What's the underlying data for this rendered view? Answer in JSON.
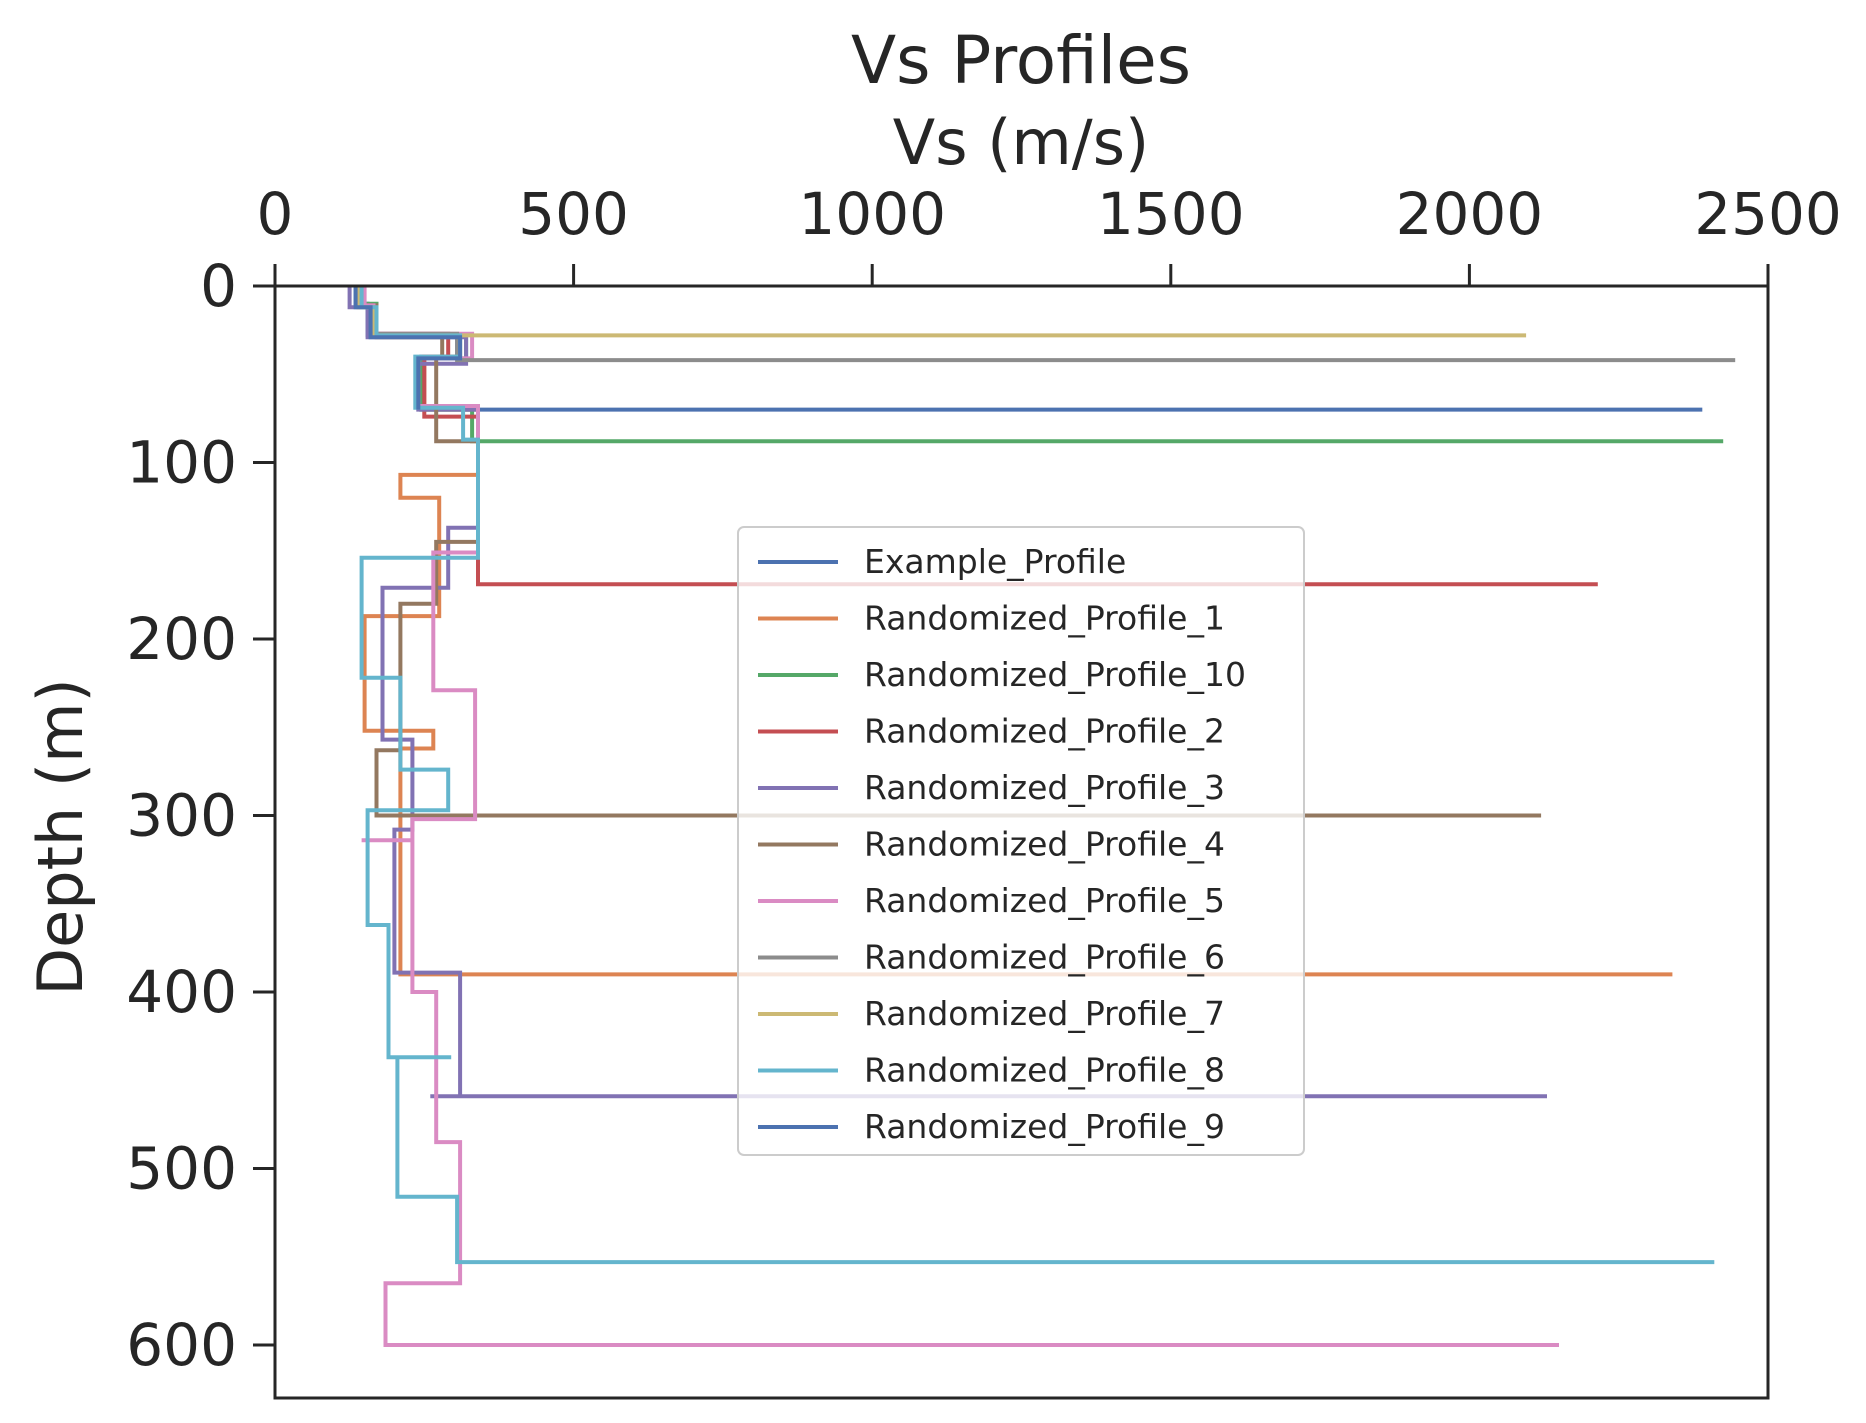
{
  "chart_data": {
    "type": "line",
    "title": "Vs Profiles",
    "xlabel": "Vs (m/s)",
    "ylabel": "Depth (m)",
    "x_axis_position": "top",
    "y_axis_inverted": true,
    "xlim": [
      0,
      2500
    ],
    "ylim": [
      630,
      0
    ],
    "xticks": [
      0,
      500,
      1000,
      1500,
      2000,
      2500
    ],
    "xtick_labels": [
      "0",
      "500",
      "1000",
      "1500",
      "2000",
      "2500"
    ],
    "yticks": [
      0,
      100,
      200,
      300,
      400,
      500,
      600
    ],
    "ytick_labels": [
      "0",
      "100",
      "200",
      "300",
      "400",
      "500",
      "600"
    ],
    "grid": false,
    "legend_position": "center",
    "series": [
      {
        "name": "Example_Profile",
        "color": "#4c72b0",
        "steps": [
          {
            "x": 135,
            "y0": 0,
            "y1": 10
          },
          {
            "x": 155,
            "y0": 10,
            "y1": 28
          },
          {
            "x": 305,
            "y0": 28,
            "y1": 40
          },
          {
            "x": 245,
            "y0": 40,
            "y1": 70
          },
          {
            "x": 2390,
            "y0": 70,
            "y1": 70
          }
        ]
      },
      {
        "name": "Randomized_Profile_1",
        "color": "#dd8452",
        "steps": [
          {
            "x": 140,
            "y0": 0,
            "y1": 12
          },
          {
            "x": 165,
            "y0": 12,
            "y1": 28
          },
          {
            "x": 310,
            "y0": 28,
            "y1": 40
          },
          {
            "x": 250,
            "y0": 40,
            "y1": 70
          },
          {
            "x": 340,
            "y0": 70,
            "y1": 107
          },
          {
            "x": 210,
            "y0": 107,
            "y1": 120
          },
          {
            "x": 275,
            "y0": 120,
            "y1": 187
          },
          {
            "x": 150,
            "y0": 187,
            "y1": 252
          },
          {
            "x": 265,
            "y0": 252,
            "y1": 262
          },
          {
            "x": 210,
            "y0": 262,
            "y1": 390
          },
          {
            "x": 2340,
            "y0": 390,
            "y1": 390
          }
        ]
      },
      {
        "name": "Randomized_Profile_10",
        "color": "#55a868",
        "steps": [
          {
            "x": 140,
            "y0": 0,
            "y1": 10
          },
          {
            "x": 170,
            "y0": 10,
            "y1": 28
          },
          {
            "x": 320,
            "y0": 28,
            "y1": 41
          },
          {
            "x": 245,
            "y0": 41,
            "y1": 70
          },
          {
            "x": 330,
            "y0": 70,
            "y1": 88
          },
          {
            "x": 2425,
            "y0": 88,
            "y1": 88
          }
        ]
      },
      {
        "name": "Randomized_Profile_2",
        "color": "#c44e52",
        "steps": [
          {
            "x": 140,
            "y0": 0,
            "y1": 11
          },
          {
            "x": 165,
            "y0": 11,
            "y1": 27
          },
          {
            "x": 290,
            "y0": 27,
            "y1": 40
          },
          {
            "x": 250,
            "y0": 40,
            "y1": 74
          },
          {
            "x": 340,
            "y0": 74,
            "y1": 169
          },
          {
            "x": 2215,
            "y0": 169,
            "y1": 169
          }
        ]
      },
      {
        "name": "Randomized_Profile_3",
        "color": "#8172b3",
        "steps": [
          {
            "x": 125,
            "y0": 0,
            "y1": 12
          },
          {
            "x": 155,
            "y0": 12,
            "y1": 29
          },
          {
            "x": 320,
            "y0": 29,
            "y1": 44
          },
          {
            "x": 240,
            "y0": 44,
            "y1": 70
          },
          {
            "x": 340,
            "y0": 70,
            "y1": 137
          },
          {
            "x": 290,
            "y0": 137,
            "y1": 171
          },
          {
            "x": 180,
            "y0": 171,
            "y1": 257
          },
          {
            "x": 230,
            "y0": 257,
            "y1": 308
          },
          {
            "x": 200,
            "y0": 308,
            "y1": 389
          },
          {
            "x": 310,
            "y0": 389,
            "y1": 459
          },
          {
            "x": 260,
            "y0": 459,
            "y1": 459
          },
          {
            "x": 2130,
            "y0": 459,
            "y1": 459
          }
        ]
      },
      {
        "name": "Randomized_Profile_4",
        "color": "#937860",
        "steps": [
          {
            "x": 140,
            "y0": 0,
            "y1": 11
          },
          {
            "x": 170,
            "y0": 11,
            "y1": 29
          },
          {
            "x": 280,
            "y0": 29,
            "y1": 40
          },
          {
            "x": 270,
            "y0": 40,
            "y1": 88
          },
          {
            "x": 340,
            "y0": 88,
            "y1": 145
          },
          {
            "x": 270,
            "y0": 145,
            "y1": 180
          },
          {
            "x": 210,
            "y0": 180,
            "y1": 263
          },
          {
            "x": 170,
            "y0": 263,
            "y1": 300
          },
          {
            "x": 2120,
            "y0": 300,
            "y1": 300
          }
        ]
      },
      {
        "name": "Randomized_Profile_5",
        "color": "#da8bc3",
        "steps": [
          {
            "x": 150,
            "y0": 0,
            "y1": 11
          },
          {
            "x": 165,
            "y0": 11,
            "y1": 27
          },
          {
            "x": 330,
            "y0": 27,
            "y1": 41
          },
          {
            "x": 240,
            "y0": 41,
            "y1": 68
          },
          {
            "x": 340,
            "y0": 68,
            "y1": 151
          },
          {
            "x": 265,
            "y0": 151,
            "y1": 229
          },
          {
            "x": 335,
            "y0": 229,
            "y1": 302
          },
          {
            "x": 230,
            "y0": 302,
            "y1": 314
          },
          {
            "x": 145,
            "y0": 314,
            "y1": 314
          },
          {
            "x": 230,
            "y0": 314,
            "y1": 400
          },
          {
            "x": 270,
            "y0": 400,
            "y1": 485
          },
          {
            "x": 310,
            "y0": 485,
            "y1": 565
          },
          {
            "x": 185,
            "y0": 565,
            "y1": 600
          },
          {
            "x": 2150,
            "y0": 600,
            "y1": 600
          }
        ]
      },
      {
        "name": "Randomized_Profile_6",
        "color": "#8c8c8c",
        "steps": [
          {
            "x": 140,
            "y0": 0,
            "y1": 12
          },
          {
            "x": 165,
            "y0": 12,
            "y1": 27
          },
          {
            "x": 305,
            "y0": 27,
            "y1": 42
          },
          {
            "x": 2445,
            "y0": 42,
            "y1": 42
          }
        ]
      },
      {
        "name": "Randomized_Profile_7",
        "color": "#ccb974",
        "steps": [
          {
            "x": 140,
            "y0": 0,
            "y1": 12
          },
          {
            "x": 165,
            "y0": 12,
            "y1": 28
          },
          {
            "x": 2095,
            "y0": 28,
            "y1": 28
          }
        ]
      },
      {
        "name": "Randomized_Profile_8",
        "color": "#64b5cd",
        "steps": [
          {
            "x": 145,
            "y0": 0,
            "y1": 12
          },
          {
            "x": 170,
            "y0": 12,
            "y1": 28
          },
          {
            "x": 310,
            "y0": 28,
            "y1": 40
          },
          {
            "x": 235,
            "y0": 40,
            "y1": 69
          },
          {
            "x": 315,
            "y0": 69,
            "y1": 87
          },
          {
            "x": 340,
            "y0": 87,
            "y1": 154
          },
          {
            "x": 145,
            "y0": 154,
            "y1": 222
          },
          {
            "x": 210,
            "y0": 222,
            "y1": 274
          },
          {
            "x": 290,
            "y0": 274,
            "y1": 297
          },
          {
            "x": 155,
            "y0": 297,
            "y1": 362
          },
          {
            "x": 190,
            "y0": 362,
            "y1": 437
          },
          {
            "x": 295,
            "y0": 437,
            "y1": 437
          },
          {
            "x": 205,
            "y0": 437,
            "y1": 516
          },
          {
            "x": 305,
            "y0": 516,
            "y1": 553
          },
          {
            "x": 2410,
            "y0": 553,
            "y1": 553
          }
        ]
      },
      {
        "name": "Randomized_Profile_9",
        "color": "#4c72b0",
        "steps": [
          {
            "x": 135,
            "y0": 0,
            "y1": 12
          },
          {
            "x": 160,
            "y0": 12,
            "y1": 29
          },
          {
            "x": 310,
            "y0": 29,
            "y1": 41
          },
          {
            "x": 240,
            "y0": 41,
            "y1": 70
          }
        ]
      }
    ]
  }
}
